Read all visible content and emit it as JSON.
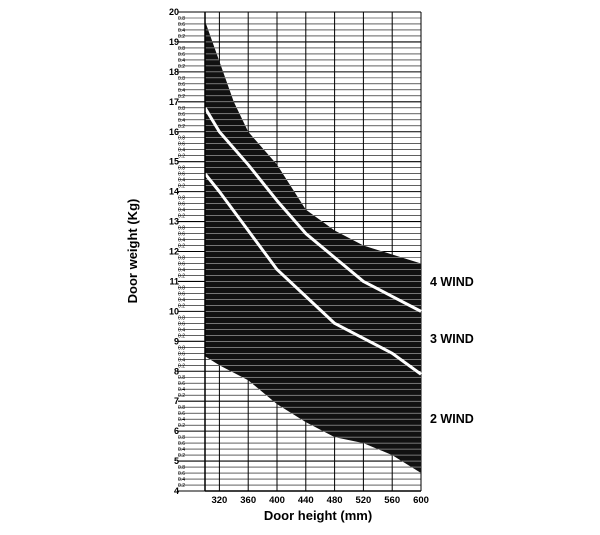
{
  "chart_data": {
    "type": "area",
    "title": "",
    "xlabel": "Door height (mm)",
    "ylabel": "Door weight (Kg)",
    "xlim": [
      300,
      600
    ],
    "ylim": [
      4,
      20
    ],
    "x_ticks": [
      "320",
      "360",
      "400",
      "440",
      "480",
      "520",
      "560",
      "600"
    ],
    "y_major_ticks": [
      "4",
      "5",
      "6",
      "7",
      "8",
      "9",
      "10",
      "11",
      "12",
      "13",
      "14",
      "15",
      "16",
      "17",
      "18",
      "19",
      "20"
    ],
    "y_minor_tick_labels": [
      "0.2",
      "0.4",
      "0.6",
      "0.8"
    ],
    "grid": true,
    "fill_color": "#111111",
    "line_color": "#ffffff",
    "boundary_top": {
      "x": [
        300,
        340,
        360,
        400,
        440,
        480,
        520,
        560,
        600
      ],
      "y": [
        19.7,
        17.0,
        16.0,
        14.9,
        13.4,
        12.7,
        12.2,
        11.9,
        11.6
      ]
    },
    "series": [
      {
        "name": "4 WIND",
        "x": [
          300,
          320,
          360,
          400,
          440,
          480,
          520,
          560,
          600
        ],
        "y": [
          16.8,
          16.0,
          14.9,
          13.7,
          12.6,
          11.8,
          11.0,
          10.5,
          10.0
        ]
      },
      {
        "name": "3 WIND",
        "x": [
          300,
          320,
          360,
          400,
          440,
          480,
          520,
          560,
          600
        ],
        "y": [
          14.6,
          14.0,
          12.7,
          11.4,
          10.5,
          9.6,
          9.1,
          8.6,
          7.9
        ]
      },
      {
        "name": "2 WIND",
        "x": [
          300,
          320,
          360,
          400,
          440,
          480,
          520,
          560,
          600
        ],
        "y": [
          8.5,
          8.2,
          7.7,
          6.9,
          6.3,
          5.8,
          5.6,
          5.2,
          4.6
        ]
      }
    ]
  }
}
